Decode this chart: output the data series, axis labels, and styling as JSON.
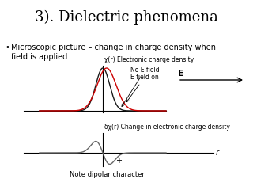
{
  "title": "3). Dielectric phenomena",
  "bullet": "Microscopic picture – change in charge density when\nfield is applied",
  "label_chi_r": "χ(r) Electronic charge density",
  "label_no_e": "No E field",
  "label_e_on": "E field on",
  "label_E": "E",
  "label_delta_chi": "δχ(r) Change in electronic charge density",
  "label_r": "r",
  "label_minus": "-",
  "label_plus": "+",
  "label_note": "Note dipolar character",
  "bg_color": "#ffffff",
  "curve_color_black": "#1a1a1a",
  "curve_color_red": "#cc0000",
  "curve_color_gray": "#666666",
  "title_fontsize": 13,
  "bullet_fontsize": 7,
  "annotation_fontsize": 6
}
